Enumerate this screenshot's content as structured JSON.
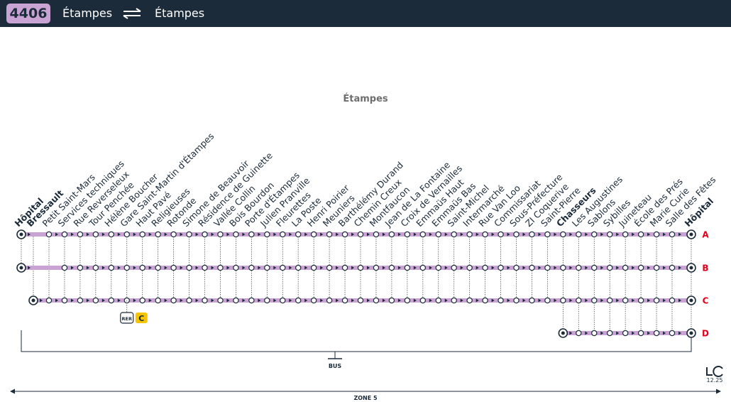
{
  "header": {
    "line_number": "4406",
    "origin": "Étampes",
    "destination": "Étampes",
    "arrow_icon": "two-way-arrow-icon"
  },
  "city_label": "Étampes",
  "stops": [
    {
      "name": "Hôpital",
      "bold": true
    },
    {
      "name": "Bressault",
      "bold": true
    },
    {
      "name": "Petit Saint-Mars",
      "bold": false
    },
    {
      "name": "Services techniques",
      "bold": false
    },
    {
      "name": "Rue Reverseleux",
      "bold": false
    },
    {
      "name": "Tour Penchée",
      "bold": false
    },
    {
      "name": "Hélène Boucher",
      "bold": false
    },
    {
      "name": "Gare Saint-Martin d'Étampes",
      "bold": false
    },
    {
      "name": "Haut Pavé",
      "bold": false
    },
    {
      "name": "Religieuses",
      "bold": false
    },
    {
      "name": "Rotonde",
      "bold": false
    },
    {
      "name": "Simone de Beauvoir",
      "bold": false
    },
    {
      "name": "Résidence de Guinette",
      "bold": false
    },
    {
      "name": "Vallée Collin",
      "bold": false
    },
    {
      "name": "Bois Bourdon",
      "bold": false
    },
    {
      "name": "Porte d'Étampes",
      "bold": false
    },
    {
      "name": "Julien Pranville",
      "bold": false
    },
    {
      "name": "Fleurettes",
      "bold": false
    },
    {
      "name": "La Poste",
      "bold": false
    },
    {
      "name": "Henri Poirier",
      "bold": false
    },
    {
      "name": "Meuniers",
      "bold": false
    },
    {
      "name": "Barthélémy Durand",
      "bold": false
    },
    {
      "name": "Chemin Creux",
      "bold": false
    },
    {
      "name": "Montfaucon",
      "bold": false
    },
    {
      "name": "Jean de La Fontaine",
      "bold": false
    },
    {
      "name": "Croix de Vernailles",
      "bold": false
    },
    {
      "name": "Emmaüs Haut",
      "bold": false
    },
    {
      "name": "Emmaüs Bas",
      "bold": false
    },
    {
      "name": "Saint-Michel",
      "bold": false
    },
    {
      "name": "Intermarché",
      "bold": false
    },
    {
      "name": "Rue Van Loo",
      "bold": false
    },
    {
      "name": "Commissariat",
      "bold": false
    },
    {
      "name": "Sous-Préfecture",
      "bold": false
    },
    {
      "name": "ZI Coquerive",
      "bold": false
    },
    {
      "name": "Saint-Pierre",
      "bold": false
    },
    {
      "name": "Chasseurs",
      "bold": true
    },
    {
      "name": "Les Augustines",
      "bold": false
    },
    {
      "name": "Sablons",
      "bold": false
    },
    {
      "name": "Sybilles",
      "bold": false
    },
    {
      "name": "Juineteau",
      "bold": false
    },
    {
      "name": "École des Prés",
      "bold": false
    },
    {
      "name": "Marie Curie",
      "bold": false
    },
    {
      "name": "Salle des Fêtes",
      "bold": false
    },
    {
      "name": "Hôpital",
      "bold": true
    }
  ],
  "branches": [
    {
      "letter": "A",
      "first": 0,
      "last": 43,
      "terminus_first": true,
      "skip": [
        1
      ]
    },
    {
      "letter": "B",
      "first": 0,
      "last": 43,
      "terminus_first": true,
      "skip": [
        1,
        2
      ]
    },
    {
      "letter": "C",
      "first": 1,
      "last": 43,
      "terminus_first": true,
      "skip": []
    },
    {
      "letter": "D",
      "first": 35,
      "last": 43,
      "terminus_first": true,
      "skip": []
    }
  ],
  "connection": {
    "mode_label": "RER",
    "line_label": "C",
    "line_color": "#f7c400",
    "stop_index": 7
  },
  "bus_label": "BUS",
  "zone_label": "ZONE 5",
  "logo": {
    "text": "LC",
    "version": "12.25"
  },
  "colors": {
    "header_bg": "#1c2b3a",
    "badge_bg": "#c9a3d4",
    "line": "#c9a3d4",
    "branch_letter": "#e2001a"
  }
}
